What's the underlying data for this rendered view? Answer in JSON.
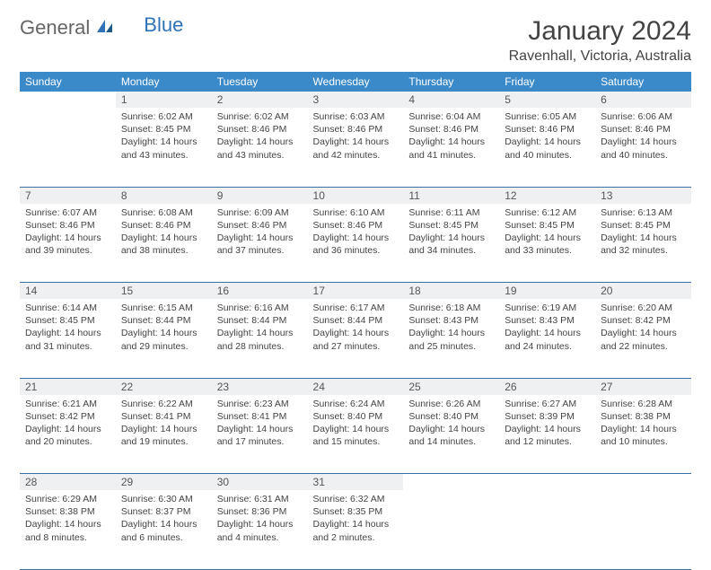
{
  "brand": {
    "general": "General",
    "blue": "Blue"
  },
  "title": "January 2024",
  "subtitle": "Ravenhall, Victoria, Australia",
  "colors": {
    "header_bg": "#3a89c9",
    "header_text": "#ffffff",
    "daynum_bg": "#eef0f2",
    "row_border": "#3a6ea5",
    "body_text": "#444444",
    "logo_blue": "#2f72b8",
    "background": "#ffffff"
  },
  "typography": {
    "title_fontsize": 30,
    "subtitle_fontsize": 16,
    "weekday_fontsize": 12,
    "cell_fontsize": 10.5,
    "logo_fontsize": 22
  },
  "weekday_labels": [
    "Sunday",
    "Monday",
    "Tuesday",
    "Wednesday",
    "Thursday",
    "Friday",
    "Saturday"
  ],
  "weeks": [
    [
      {
        "day": "",
        "sunrise": "",
        "sunset": "",
        "daylight": ""
      },
      {
        "day": "1",
        "sunrise": "Sunrise: 6:02 AM",
        "sunset": "Sunset: 8:45 PM",
        "daylight": "Daylight: 14 hours and 43 minutes."
      },
      {
        "day": "2",
        "sunrise": "Sunrise: 6:02 AM",
        "sunset": "Sunset: 8:46 PM",
        "daylight": "Daylight: 14 hours and 43 minutes."
      },
      {
        "day": "3",
        "sunrise": "Sunrise: 6:03 AM",
        "sunset": "Sunset: 8:46 PM",
        "daylight": "Daylight: 14 hours and 42 minutes."
      },
      {
        "day": "4",
        "sunrise": "Sunrise: 6:04 AM",
        "sunset": "Sunset: 8:46 PM",
        "daylight": "Daylight: 14 hours and 41 minutes."
      },
      {
        "day": "5",
        "sunrise": "Sunrise: 6:05 AM",
        "sunset": "Sunset: 8:46 PM",
        "daylight": "Daylight: 14 hours and 40 minutes."
      },
      {
        "day": "6",
        "sunrise": "Sunrise: 6:06 AM",
        "sunset": "Sunset: 8:46 PM",
        "daylight": "Daylight: 14 hours and 40 minutes."
      }
    ],
    [
      {
        "day": "7",
        "sunrise": "Sunrise: 6:07 AM",
        "sunset": "Sunset: 8:46 PM",
        "daylight": "Daylight: 14 hours and 39 minutes."
      },
      {
        "day": "8",
        "sunrise": "Sunrise: 6:08 AM",
        "sunset": "Sunset: 8:46 PM",
        "daylight": "Daylight: 14 hours and 38 minutes."
      },
      {
        "day": "9",
        "sunrise": "Sunrise: 6:09 AM",
        "sunset": "Sunset: 8:46 PM",
        "daylight": "Daylight: 14 hours and 37 minutes."
      },
      {
        "day": "10",
        "sunrise": "Sunrise: 6:10 AM",
        "sunset": "Sunset: 8:46 PM",
        "daylight": "Daylight: 14 hours and 36 minutes."
      },
      {
        "day": "11",
        "sunrise": "Sunrise: 6:11 AM",
        "sunset": "Sunset: 8:45 PM",
        "daylight": "Daylight: 14 hours and 34 minutes."
      },
      {
        "day": "12",
        "sunrise": "Sunrise: 6:12 AM",
        "sunset": "Sunset: 8:45 PM",
        "daylight": "Daylight: 14 hours and 33 minutes."
      },
      {
        "day": "13",
        "sunrise": "Sunrise: 6:13 AM",
        "sunset": "Sunset: 8:45 PM",
        "daylight": "Daylight: 14 hours and 32 minutes."
      }
    ],
    [
      {
        "day": "14",
        "sunrise": "Sunrise: 6:14 AM",
        "sunset": "Sunset: 8:45 PM",
        "daylight": "Daylight: 14 hours and 31 minutes."
      },
      {
        "day": "15",
        "sunrise": "Sunrise: 6:15 AM",
        "sunset": "Sunset: 8:44 PM",
        "daylight": "Daylight: 14 hours and 29 minutes."
      },
      {
        "day": "16",
        "sunrise": "Sunrise: 6:16 AM",
        "sunset": "Sunset: 8:44 PM",
        "daylight": "Daylight: 14 hours and 28 minutes."
      },
      {
        "day": "17",
        "sunrise": "Sunrise: 6:17 AM",
        "sunset": "Sunset: 8:44 PM",
        "daylight": "Daylight: 14 hours and 27 minutes."
      },
      {
        "day": "18",
        "sunrise": "Sunrise: 6:18 AM",
        "sunset": "Sunset: 8:43 PM",
        "daylight": "Daylight: 14 hours and 25 minutes."
      },
      {
        "day": "19",
        "sunrise": "Sunrise: 6:19 AM",
        "sunset": "Sunset: 8:43 PM",
        "daylight": "Daylight: 14 hours and 24 minutes."
      },
      {
        "day": "20",
        "sunrise": "Sunrise: 6:20 AM",
        "sunset": "Sunset: 8:42 PM",
        "daylight": "Daylight: 14 hours and 22 minutes."
      }
    ],
    [
      {
        "day": "21",
        "sunrise": "Sunrise: 6:21 AM",
        "sunset": "Sunset: 8:42 PM",
        "daylight": "Daylight: 14 hours and 20 minutes."
      },
      {
        "day": "22",
        "sunrise": "Sunrise: 6:22 AM",
        "sunset": "Sunset: 8:41 PM",
        "daylight": "Daylight: 14 hours and 19 minutes."
      },
      {
        "day": "23",
        "sunrise": "Sunrise: 6:23 AM",
        "sunset": "Sunset: 8:41 PM",
        "daylight": "Daylight: 14 hours and 17 minutes."
      },
      {
        "day": "24",
        "sunrise": "Sunrise: 6:24 AM",
        "sunset": "Sunset: 8:40 PM",
        "daylight": "Daylight: 14 hours and 15 minutes."
      },
      {
        "day": "25",
        "sunrise": "Sunrise: 6:26 AM",
        "sunset": "Sunset: 8:40 PM",
        "daylight": "Daylight: 14 hours and 14 minutes."
      },
      {
        "day": "26",
        "sunrise": "Sunrise: 6:27 AM",
        "sunset": "Sunset: 8:39 PM",
        "daylight": "Daylight: 14 hours and 12 minutes."
      },
      {
        "day": "27",
        "sunrise": "Sunrise: 6:28 AM",
        "sunset": "Sunset: 8:38 PM",
        "daylight": "Daylight: 14 hours and 10 minutes."
      }
    ],
    [
      {
        "day": "28",
        "sunrise": "Sunrise: 6:29 AM",
        "sunset": "Sunset: 8:38 PM",
        "daylight": "Daylight: 14 hours and 8 minutes."
      },
      {
        "day": "29",
        "sunrise": "Sunrise: 6:30 AM",
        "sunset": "Sunset: 8:37 PM",
        "daylight": "Daylight: 14 hours and 6 minutes."
      },
      {
        "day": "30",
        "sunrise": "Sunrise: 6:31 AM",
        "sunset": "Sunset: 8:36 PM",
        "daylight": "Daylight: 14 hours and 4 minutes."
      },
      {
        "day": "31",
        "sunrise": "Sunrise: 6:32 AM",
        "sunset": "Sunset: 8:35 PM",
        "daylight": "Daylight: 14 hours and 2 minutes."
      },
      {
        "day": "",
        "sunrise": "",
        "sunset": "",
        "daylight": ""
      },
      {
        "day": "",
        "sunrise": "",
        "sunset": "",
        "daylight": ""
      },
      {
        "day": "",
        "sunrise": "",
        "sunset": "",
        "daylight": ""
      }
    ]
  ]
}
